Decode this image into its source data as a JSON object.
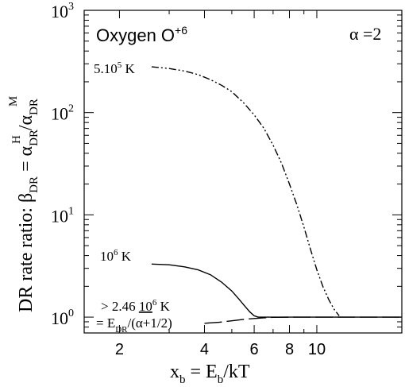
{
  "chart_data": {
    "type": "line",
    "title": "Oxygen O",
    "title_sup": "+6",
    "annotation_alpha": "α =2",
    "xlabel": {
      "main": "x",
      "sub1": "b",
      "eq": " = E",
      "sub2": "b",
      "tail": "/kT"
    },
    "ylabel": {
      "prefix": "DR rate ratio:  β",
      "sub1": "DR",
      "eq": " = α",
      "sub2": "DR",
      "sup2": "H",
      "slash": "/α",
      "sub3": "DR",
      "sup3": "M"
    },
    "x_scale": "log",
    "y_scale": "log",
    "xlim": [
      1.5,
      20
    ],
    "ylim": [
      0.7,
      1000
    ],
    "x_ticks": [
      {
        "value": 2,
        "label": "2"
      },
      {
        "value": 4,
        "label": "4"
      },
      {
        "value": 6,
        "label": "6"
      },
      {
        "value": 8,
        "label": "8"
      },
      {
        "value": 10,
        "label": "10"
      }
    ],
    "y_ticks": [
      {
        "value": 1,
        "base": "10",
        "exp": "0"
      },
      {
        "value": 10,
        "base": "10",
        "exp": "1"
      },
      {
        "value": 100,
        "base": "10",
        "exp": "2"
      },
      {
        "value": 1000,
        "base": "10",
        "exp": "3"
      }
    ],
    "grid": false,
    "series": [
      {
        "label_pre": "5.10",
        "label_exp": "5",
        "label_post": " K",
        "style": "dash-dot-dot",
        "x": [
          2.6,
          3.0,
          3.4,
          3.8,
          4.2,
          4.6,
          5.0,
          5.5,
          6.0,
          6.5,
          7.0,
          7.5,
          8.0,
          8.5,
          9.0,
          9.5,
          10.0,
          10.5,
          11.0,
          11.5,
          12.0
        ],
        "y": [
          280,
          270,
          255,
          235,
          210,
          185,
          160,
          125,
          95,
          70,
          48,
          32,
          20,
          12.5,
          7.6,
          4.6,
          2.9,
          2.0,
          1.5,
          1.2,
          1.03
        ]
      },
      {
        "label_pre": "10",
        "label_exp": "6",
        "label_post": " K",
        "style": "solid",
        "x": [
          2.6,
          3.0,
          3.4,
          3.8,
          4.2,
          4.6,
          5.0,
          5.3,
          5.6,
          5.8,
          6.0,
          6.2,
          6.5,
          7.0,
          8.0,
          10.0,
          13.0,
          16.0,
          20.0
        ],
        "y": [
          3.3,
          3.25,
          3.1,
          2.9,
          2.6,
          2.2,
          1.8,
          1.5,
          1.25,
          1.12,
          1.03,
          1.0,
          1.0,
          1.0,
          1.0,
          1.0,
          1.0,
          1.0,
          1.0
        ]
      },
      {
        "label_pre": "> 2.46 ",
        "label_mid": "10",
        "label_exp": "6",
        "label_post": " K",
        "label2_pre": "= E",
        "label2_sub": "DR",
        "label2_post": "/(α+1/2)",
        "style": "long-dash",
        "x": [
          4.0,
          4.5,
          5.0,
          5.5,
          6.0,
          6.5,
          7.0,
          8.0,
          10.0,
          13.0,
          16.0,
          20.0
        ],
        "y": [
          0.87,
          0.89,
          0.92,
          0.95,
          0.97,
          0.985,
          0.995,
          1.0,
          1.0,
          1.0,
          1.0,
          1.0
        ]
      }
    ]
  }
}
